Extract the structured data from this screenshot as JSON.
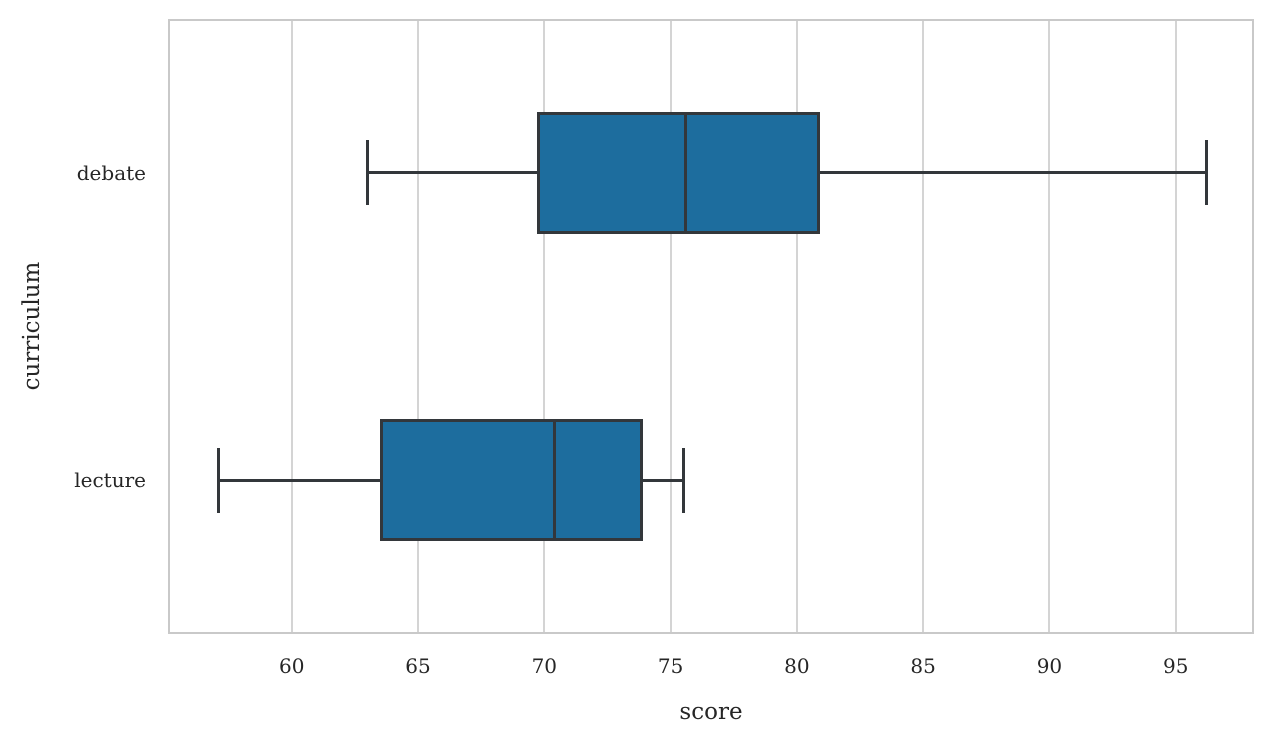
{
  "chart_data": {
    "type": "boxplot",
    "orientation": "horizontal",
    "title": "",
    "xlabel": "score",
    "ylabel": "curriculum",
    "xlim": [
      55.1,
      98.1
    ],
    "xticks": [
      60,
      65,
      70,
      75,
      80,
      85,
      90,
      95
    ],
    "categories": [
      "debate",
      "lecture"
    ],
    "series": [
      {
        "category": "debate",
        "whisker_low": 63.0,
        "q1": 69.7,
        "median": 75.6,
        "q3": 80.9,
        "whisker_high": 96.2,
        "outliers": []
      },
      {
        "category": "lecture",
        "whisker_low": 57.1,
        "q1": 63.5,
        "median": 70.4,
        "q3": 73.9,
        "whisker_high": 75.5,
        "outliers": []
      }
    ],
    "grid": "vertical",
    "legend": "none",
    "colors": {
      "box_fill": "#1d6d9e",
      "line": "#33373b",
      "gridline": "#d4d4d4",
      "axes_border": "#c9c9c9",
      "text": "#262626",
      "background": "#ffffff"
    }
  }
}
